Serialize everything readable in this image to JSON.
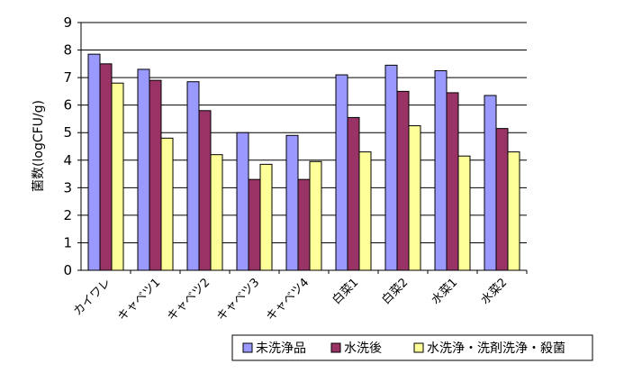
{
  "chart_data": {
    "type": "bar",
    "ylabel": "菌数(logCFU/g)",
    "ylim": [
      0,
      9
    ],
    "yticks": [
      0,
      1,
      2,
      3,
      4,
      5,
      6,
      7,
      8,
      9
    ],
    "grid": true,
    "legend_position": "bottom-right",
    "categories": [
      "カイワレ",
      "キャベツ1",
      "キャベツ2",
      "キャベツ3",
      "キャベツ4",
      "白菜1",
      "白菜2",
      "水菜1",
      "水菜2"
    ],
    "series": [
      {
        "name": "未洗浄品",
        "color": "#9999ff",
        "values": [
          7.85,
          7.3,
          6.85,
          5.0,
          4.9,
          7.1,
          7.45,
          7.25,
          6.35
        ]
      },
      {
        "name": "水洗後",
        "color": "#993366",
        "values": [
          7.5,
          6.9,
          5.8,
          3.3,
          3.3,
          5.55,
          6.5,
          6.45,
          5.15
        ]
      },
      {
        "name": "水洗浄・洗剤洗浄・殺菌",
        "color": "#ffff99",
        "values": [
          6.8,
          4.8,
          4.2,
          3.85,
          3.95,
          4.3,
          5.25,
          4.15,
          4.3
        ]
      }
    ]
  }
}
